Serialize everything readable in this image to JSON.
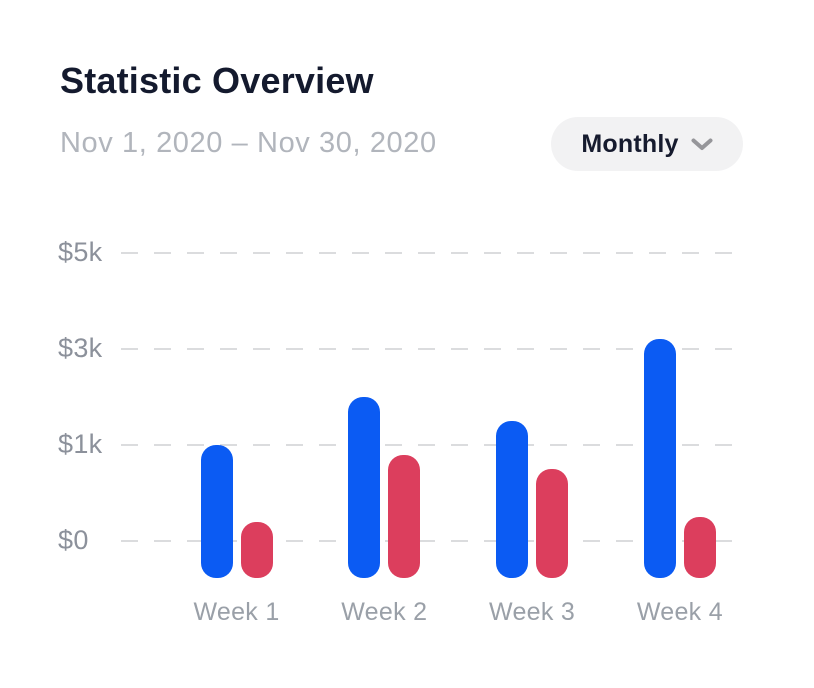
{
  "header": {
    "title": "Statistic Overview",
    "date_range": "Nov 1, 2020 – Nov 30, 2020",
    "period_dropdown": {
      "label": "Monthly",
      "icon": "chevron-down-icon"
    }
  },
  "colors": {
    "background": "#ffffff",
    "title_text": "#141a2e",
    "subtitle_text": "#b1b5bc",
    "axis_text": "#8c919b",
    "x_axis_text": "#9aa0a8",
    "gridline": "#dbdcde",
    "dropdown_bg": "#f2f2f3",
    "dropdown_text": "#161b2e",
    "chevron": "#96969a",
    "bar_blue": "#0b5bf3",
    "bar_red": "#dc3e5d"
  },
  "chart_data": {
    "type": "bar",
    "title": "Statistic Overview",
    "subtitle": "Nov 1, 2020 – Nov 30, 2020",
    "categories": [
      "Week 1",
      "Week 2",
      "Week 3",
      "Week 4"
    ],
    "series": [
      {
        "name": "blue",
        "color": "#0b5bf3",
        "values": [
          1000,
          2000,
          1500,
          3200
        ]
      },
      {
        "name": "red",
        "color": "#dc3e5d",
        "values": [
          200,
          900,
          750,
          250
        ]
      }
    ],
    "unit": "USD",
    "y_ticks": [
      {
        "label": "$5k",
        "value": 5000
      },
      {
        "label": "$3k",
        "value": 3000
      },
      {
        "label": "$1k",
        "value": 1000
      },
      {
        "label": "$0",
        "value": 0
      }
    ],
    "ylim": [
      0,
      5000
    ],
    "grid": "horizontal-dashed",
    "legend": "none",
    "bar_style": "rounded-pill-caps"
  }
}
